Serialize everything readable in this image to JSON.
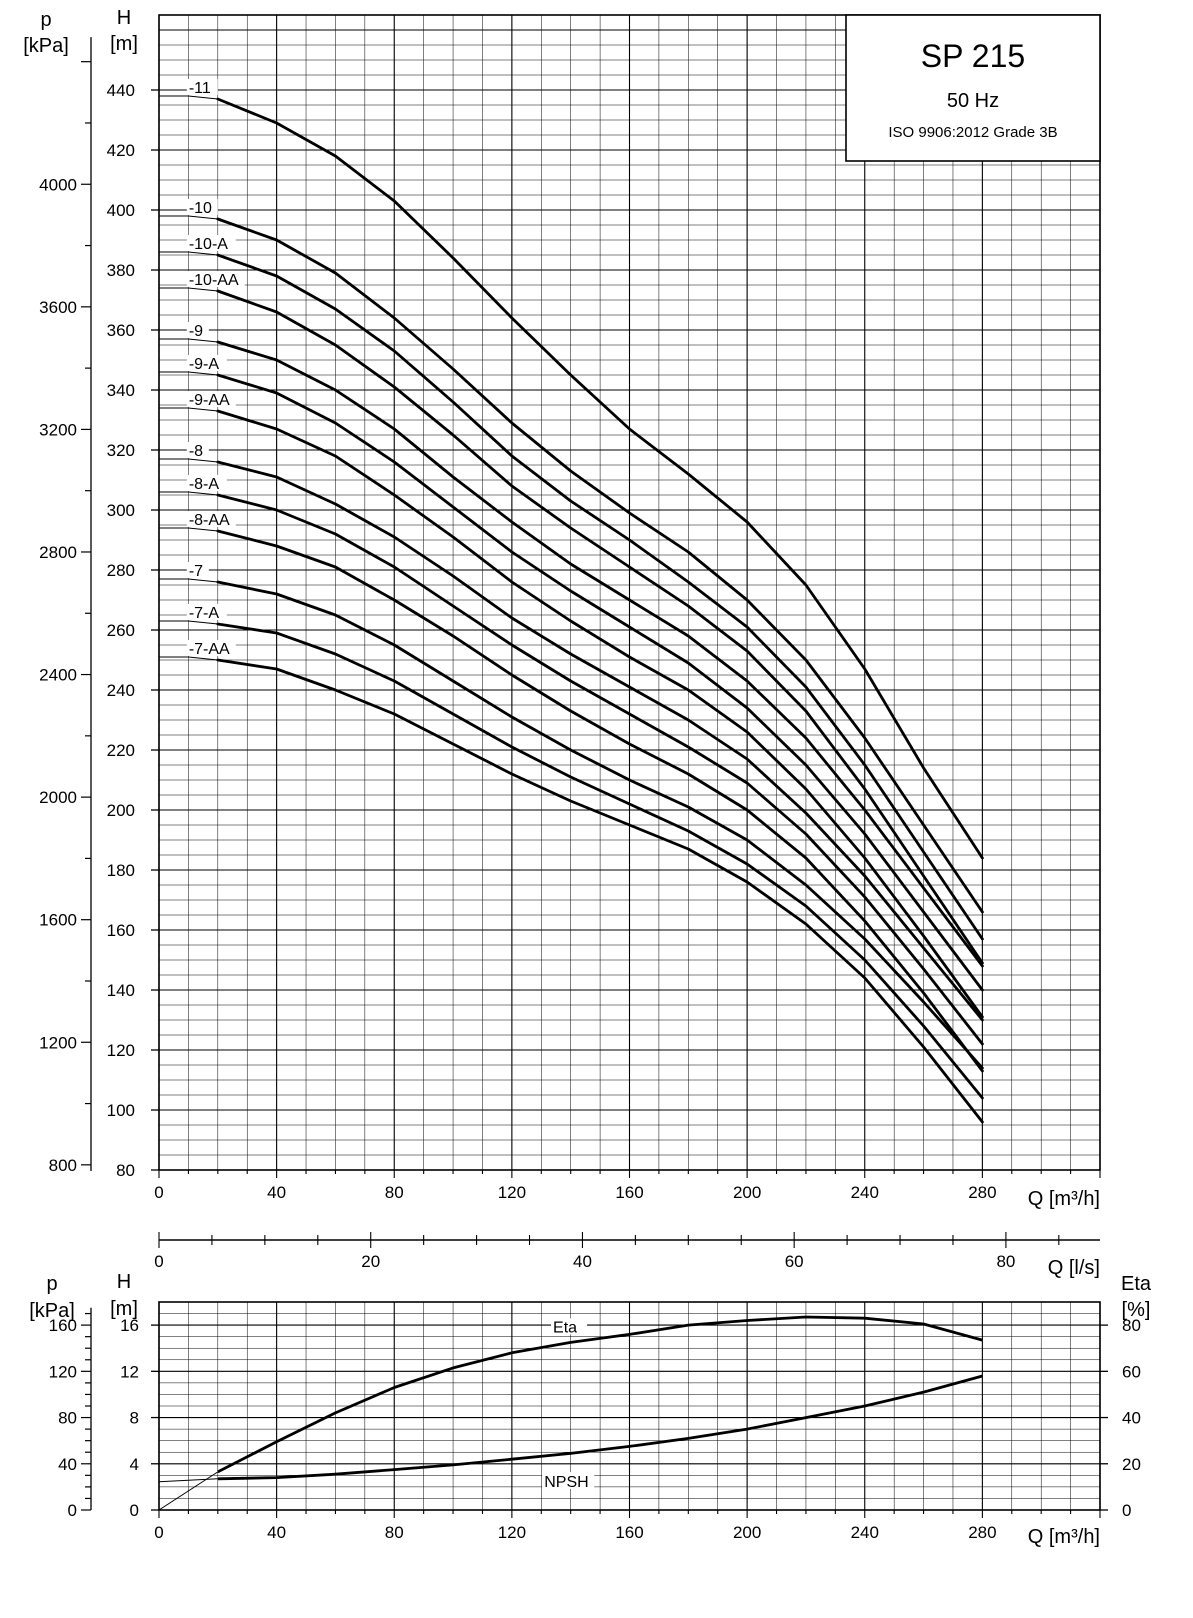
{
  "chart_data": [
    {
      "type": "line",
      "title": "SP 215",
      "subtitle": "50 Hz",
      "standard": "ISO 9906:2012 Grade 3B",
      "xlabel": "Q [m³/h]",
      "ylabel": "H",
      "ylabel_unit": "[m]",
      "y2label": "p",
      "y2label_unit": "[kPa]",
      "secondary_axis_label": "Q [l/s]",
      "xlim": [
        0,
        320
      ],
      "ylim": [
        80,
        465
      ],
      "y2lim": [
        800,
        4000
      ],
      "x_ticks": [
        "0",
        "40",
        "80",
        "120",
        "160",
        "200",
        "240",
        "280"
      ],
      "y_ticks": [
        "80",
        "100",
        "120",
        "140",
        "160",
        "180",
        "200",
        "220",
        "240",
        "260",
        "280",
        "300",
        "320",
        "340",
        "360",
        "380",
        "400",
        "420",
        "440"
      ],
      "y2_ticks": [
        "800",
        "1200",
        "1600",
        "2000",
        "2400",
        "2800",
        "3200",
        "3600",
        "4000"
      ],
      "ls_ticks": [
        "0",
        "20",
        "40",
        "60",
        "80"
      ],
      "grid": true,
      "series": [
        {
          "name": "-11",
          "x": [
            0,
            10,
            20,
            40,
            60,
            80,
            100,
            120,
            140,
            160,
            180,
            200,
            220,
            240,
            260,
            280
          ],
          "y": [
            438,
            438,
            437,
            429,
            418,
            403,
            384,
            364,
            345,
            327,
            312,
            296,
            275,
            247,
            214,
            184
          ]
        },
        {
          "name": "-10",
          "x": [
            0,
            10,
            20,
            40,
            60,
            80,
            100,
            120,
            140,
            160,
            180,
            200,
            220,
            240,
            260,
            280
          ],
          "y": [
            398,
            398,
            397,
            390,
            379,
            364,
            347,
            329,
            313,
            299,
            286,
            270,
            250,
            224,
            195,
            166
          ]
        },
        {
          "name": "-10-A",
          "x": [
            0,
            10,
            20,
            40,
            60,
            80,
            100,
            120,
            140,
            160,
            180,
            200,
            220,
            240,
            260,
            280
          ],
          "y": [
            386,
            386,
            385,
            378,
            367,
            353,
            336,
            318,
            303,
            290,
            276,
            261,
            241,
            215,
            186,
            157
          ]
        },
        {
          "name": "-10-AA",
          "x": [
            0,
            10,
            20,
            40,
            60,
            80,
            100,
            120,
            140,
            160,
            180,
            200,
            220,
            240,
            260,
            280
          ],
          "y": [
            374,
            374,
            373,
            366,
            355,
            341,
            325,
            308,
            294,
            281,
            268,
            253,
            233,
            207,
            178,
            149
          ]
        },
        {
          "name": "-9",
          "x": [
            0,
            10,
            20,
            40,
            60,
            80,
            100,
            120,
            140,
            160,
            180,
            200,
            220,
            240,
            260,
            280
          ],
          "y": [
            357,
            357,
            356,
            350,
            340,
            327,
            311,
            296,
            282,
            270,
            258,
            243,
            224,
            200,
            174,
            148
          ]
        },
        {
          "name": "-9-A",
          "x": [
            0,
            10,
            20,
            40,
            60,
            80,
            100,
            120,
            140,
            160,
            180,
            200,
            220,
            240,
            260,
            280
          ],
          "y": [
            346,
            346,
            345,
            339,
            329,
            316,
            301,
            286,
            273,
            261,
            249,
            234,
            215,
            192,
            166,
            140
          ]
        },
        {
          "name": "-9-AA",
          "x": [
            0,
            10,
            20,
            40,
            60,
            80,
            100,
            120,
            140,
            160,
            180,
            200,
            220,
            240,
            260,
            280
          ],
          "y": [
            334,
            334,
            333,
            327,
            318,
            305,
            291,
            276,
            263,
            251,
            240,
            226,
            207,
            184,
            158,
            131
          ]
        },
        {
          "name": "-8",
          "x": [
            0,
            10,
            20,
            40,
            60,
            80,
            100,
            120,
            140,
            160,
            180,
            200,
            220,
            240,
            260,
            280
          ],
          "y": [
            317,
            317,
            316,
            311,
            302,
            291,
            278,
            264,
            252,
            241,
            230,
            217,
            199,
            178,
            154,
            130
          ]
        },
        {
          "name": "-8-A",
          "x": [
            0,
            10,
            20,
            40,
            60,
            80,
            100,
            120,
            140,
            160,
            180,
            200,
            220,
            240,
            260,
            280
          ],
          "y": [
            306,
            306,
            305,
            300,
            292,
            281,
            268,
            255,
            243,
            232,
            221,
            209,
            192,
            171,
            147,
            122
          ]
        },
        {
          "name": "-8-AA",
          "x": [
            0,
            10,
            20,
            40,
            60,
            80,
            100,
            120,
            140,
            160,
            180,
            200,
            220,
            240,
            260,
            280
          ],
          "y": [
            294,
            294,
            293,
            288,
            281,
            270,
            258,
            245,
            233,
            222,
            212,
            200,
            184,
            163,
            139,
            113
          ]
        },
        {
          "name": "-7",
          "x": [
            0,
            10,
            20,
            40,
            60,
            80,
            100,
            120,
            140,
            160,
            180,
            200,
            220,
            240,
            260,
            280
          ],
          "y": [
            277,
            277,
            276,
            272,
            265,
            255,
            243,
            231,
            220,
            210,
            201,
            190,
            175,
            157,
            136,
            114
          ]
        },
        {
          "name": "-7-A",
          "x": [
            0,
            10,
            20,
            40,
            60,
            80,
            100,
            120,
            140,
            160,
            180,
            200,
            220,
            240,
            260,
            280
          ],
          "y": [
            263,
            263,
            262,
            259,
            252,
            243,
            232,
            221,
            211,
            202,
            193,
            182,
            168,
            150,
            128,
            104
          ]
        },
        {
          "name": "-7-AA",
          "x": [
            0,
            10,
            20,
            40,
            60,
            80,
            100,
            120,
            140,
            160,
            180,
            200,
            220,
            240,
            260,
            280
          ],
          "y": [
            251,
            251,
            250,
            247,
            240,
            232,
            222,
            212,
            203,
            195,
            187,
            176,
            162,
            144,
            121,
            96
          ]
        }
      ]
    },
    {
      "type": "line",
      "xlabel": "Q [m³/h]",
      "ylabel": "H",
      "ylabel_unit": "[m]",
      "y2label": "p",
      "y2label_unit": "[kPa]",
      "y3label": "Eta",
      "y3label_unit": "[%]",
      "xlim": [
        0,
        320
      ],
      "ylim": [
        0,
        18
      ],
      "x_ticks": [
        "0",
        "40",
        "80",
        "120",
        "160",
        "200",
        "240",
        "280"
      ],
      "y_ticks": [
        "0",
        "4",
        "8",
        "12",
        "16"
      ],
      "y2_ticks": [
        "0",
        "40",
        "80",
        "120",
        "160"
      ],
      "y3_ticks": [
        "0",
        "20",
        "40",
        "60",
        "80"
      ],
      "grid": true,
      "series": [
        {
          "name": "Eta",
          "unit": "%",
          "x": [
            20,
            40,
            60,
            80,
            100,
            120,
            140,
            160,
            180,
            200,
            220,
            240,
            260,
            280
          ],
          "y": [
            16.5,
            29.5,
            42,
            53,
            61.5,
            68,
            72.5,
            76,
            80,
            82,
            83.5,
            83,
            80.5,
            73.5
          ]
        },
        {
          "name": "NPSH",
          "unit": "m",
          "x": [
            20,
            40,
            60,
            80,
            100,
            120,
            140,
            160,
            180,
            200,
            220,
            240,
            260,
            280
          ],
          "y": [
            2.7,
            2.8,
            3.1,
            3.5,
            3.9,
            4.4,
            4.9,
            5.5,
            6.2,
            7.0,
            8.0,
            9.0,
            10.2,
            11.6
          ]
        }
      ]
    }
  ]
}
